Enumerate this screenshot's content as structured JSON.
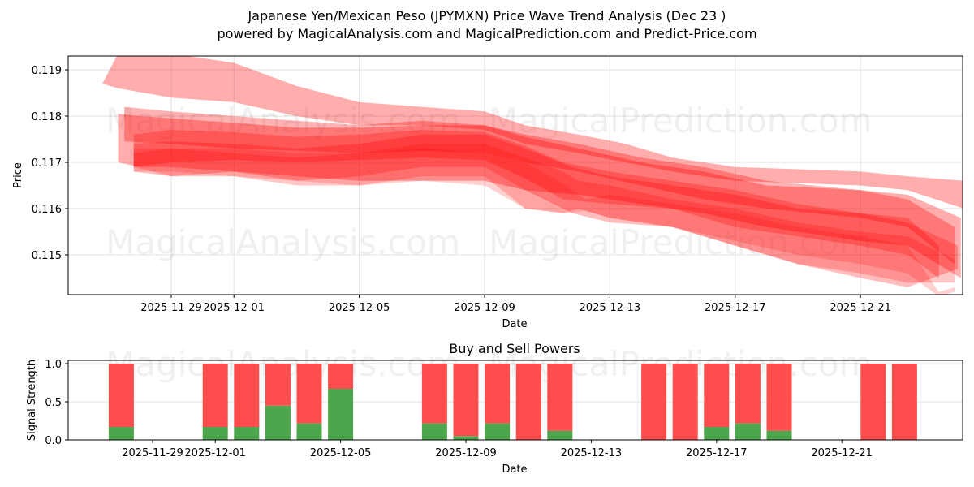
{
  "header": {
    "title_line1": "Japanese Yen/Mexican Peso (JPYMXN) Price Wave Trend Analysis (Dec 23 )",
    "title_line2": "powered by MagicalAnalysis.com and MagicalPrediction.com and Predict-Price.com"
  },
  "watermarks": [
    "MagicalAnalysis.com",
    "MagicalPrediction.com"
  ],
  "colors": {
    "band": "#ff0000",
    "sell": "#ff4c4c",
    "buy": "#4ca64c",
    "grid": "#e0e0e0",
    "axis": "#000000"
  },
  "chart_data": [
    {
      "type": "area",
      "title": "Japanese Yen/Mexican Peso (JPYMXN) Price Wave Trend Analysis (Dec 23 )",
      "xlabel": "Date",
      "ylabel": "Price",
      "ylim": [
        0.11415,
        0.1193
      ],
      "yticks": [
        0.115,
        0.116,
        0.117,
        0.118,
        0.119
      ],
      "ytick_labels": [
        "0.115",
        "0.116",
        "0.117",
        "0.118",
        "0.119"
      ],
      "xtick_labels": [
        "2025-11-29",
        "2025-12-01",
        "2025-12-05",
        "2025-12-09",
        "2025-12-13",
        "2025-12-17",
        "2025-12-21"
      ],
      "xtick_days": [
        2,
        4,
        8,
        12,
        16,
        20,
        24
      ],
      "x_range_days": [
        -0.7,
        27.9
      ],
      "grid": true,
      "x_days_legend": "day 0 = 2025-11-27",
      "bands": [
        {
          "opacity": 0.32,
          "x": [
            -0.2,
            0.3,
            2,
            4,
            6,
            8,
            10,
            12,
            13.3,
            15,
            16.5,
            18,
            20,
            24,
            25.5,
            27.3
          ],
          "upper": [
            0.1187,
            0.11935,
            0.11935,
            0.11915,
            0.11865,
            0.1183,
            0.1182,
            0.1181,
            0.1178,
            0.1176,
            0.1174,
            0.1171,
            0.1169,
            0.1168,
            0.1167,
            0.1166
          ],
          "lower": [
            0.1187,
            0.1186,
            0.1184,
            0.1183,
            0.118,
            0.1178,
            0.1178,
            0.1177,
            0.1174,
            0.1172,
            0.117,
            0.1168,
            0.1166,
            0.1165,
            0.1164,
            0.116
          ]
        },
        {
          "opacity": 0.32,
          "x": [
            0.3,
            1,
            2,
            4,
            6,
            8,
            10,
            12,
            13.3,
            15,
            17,
            19,
            21,
            24,
            25.5,
            27.2
          ],
          "upper": [
            0.11805,
            0.118,
            0.11795,
            0.11785,
            0.11775,
            0.11775,
            0.1178,
            0.1178,
            0.11755,
            0.1173,
            0.117,
            0.1168,
            0.1165,
            0.1164,
            0.1163,
            0.1158
          ],
          "lower": [
            0.117,
            0.1169,
            0.1169,
            0.1168,
            0.1167,
            0.1166,
            0.1166,
            0.1166,
            0.1164,
            0.1163,
            0.1161,
            0.1159,
            0.1156,
            0.1153,
            0.1152,
            0.1145
          ]
        },
        {
          "opacity": 0.3,
          "x": [
            0.5,
            2,
            4,
            6,
            8,
            10,
            12,
            13.3,
            15,
            17,
            19,
            21,
            24,
            25.5,
            27.0
          ],
          "upper": [
            0.1182,
            0.1181,
            0.118,
            0.1179,
            0.1178,
            0.1179,
            0.1178,
            0.1176,
            0.1174,
            0.1171,
            0.1169,
            0.1166,
            0.1164,
            0.1162,
            0.1156
          ],
          "lower": [
            0.11745,
            0.1174,
            0.1173,
            0.11725,
            0.1172,
            0.11725,
            0.1172,
            0.117,
            0.1168,
            0.1165,
            0.1162,
            0.116,
            0.1158,
            0.1156,
            0.1148
          ]
        },
        {
          "opacity": 0.28,
          "x": [
            0.8,
            2,
            4,
            6,
            8,
            10,
            12,
            13.3,
            14.5,
            16,
            18,
            20,
            22,
            24,
            25.5,
            26.5
          ],
          "upper": [
            0.1176,
            0.1177,
            0.11765,
            0.11755,
            0.1176,
            0.1177,
            0.11765,
            0.11735,
            0.117,
            0.1168,
            0.1166,
            0.1164,
            0.1161,
            0.1159,
            0.1158,
            0.1152
          ],
          "lower": [
            0.1169,
            0.117,
            0.11705,
            0.117,
            0.11705,
            0.1171,
            0.11705,
            0.11665,
            0.1162,
            0.1161,
            0.116,
            0.1156,
            0.1154,
            0.1152,
            0.115,
            0.1145
          ]
        },
        {
          "opacity": 0.26,
          "x": [
            0.8,
            2,
            4,
            6,
            8,
            10,
            12,
            13.3,
            14.8,
            16,
            18,
            20,
            22,
            24,
            25.5,
            27.1
          ],
          "upper": [
            0.1174,
            0.11745,
            0.1174,
            0.1173,
            0.1174,
            0.1176,
            0.1176,
            0.1173,
            0.1169,
            0.1167,
            0.1165,
            0.1163,
            0.116,
            0.1159,
            0.1157,
            0.1152
          ],
          "lower": [
            0.1168,
            0.1167,
            0.1168,
            0.1166,
            0.1167,
            0.1169,
            0.1169,
            0.1164,
            0.1159,
            0.1157,
            0.1156,
            0.1152,
            0.1148,
            0.1145,
            0.1143,
            0.1147
          ]
        },
        {
          "opacity": 0.22,
          "x": [
            0.8,
            2,
            4,
            6,
            8,
            10,
            12,
            13.3,
            14.5,
            15,
            16,
            18,
            20,
            22,
            24,
            25.5,
            27.0
          ],
          "upper": [
            0.1172,
            0.1173,
            0.1172,
            0.1171,
            0.1172,
            0.1174,
            0.1174,
            0.1171,
            0.1168,
            0.1166,
            0.1165,
            0.1162,
            0.116,
            0.1157,
            0.1155,
            0.1154,
            0.1149
          ],
          "lower": [
            0.1169,
            0.1167,
            0.1167,
            0.1165,
            0.1165,
            0.1167,
            0.1167,
            0.116,
            0.1159,
            0.116,
            0.1158,
            0.1156,
            0.1152,
            0.1148,
            0.1146,
            0.1144,
            0.1144
          ]
        },
        {
          "opacity": 0.18,
          "x": [
            0.8,
            2,
            4,
            6,
            8,
            10,
            12,
            13.3,
            14.6,
            15.2,
            16,
            18,
            20,
            22,
            24,
            25.5,
            26.5,
            27.0
          ],
          "upper": [
            0.1173,
            0.1173,
            0.1173,
            0.1172,
            0.1172,
            0.1173,
            0.1172,
            0.117,
            0.1165,
            0.1162,
            0.1163,
            0.1161,
            0.1159,
            0.1156,
            0.1154,
            0.1152,
            0.1142,
            0.1143
          ],
          "lower": [
            0.1168,
            0.1168,
            0.1167,
            0.1166,
            0.1165,
            0.1166,
            0.1165,
            0.116,
            0.1159,
            0.11595,
            0.1158,
            0.1156,
            0.1153,
            0.115,
            0.1148,
            0.1146,
            0.1141,
            0.1142
          ]
        }
      ]
    },
    {
      "type": "bar",
      "title": "Buy and Sell Powers",
      "xlabel": "Date",
      "ylabel": "Signal Strength",
      "ylim": [
        0.0,
        1.05
      ],
      "yticks": [
        0.0,
        0.5,
        1.0
      ],
      "ytick_labels": [
        "0.0",
        "0.5",
        "1.0"
      ],
      "xtick_labels": [
        "2025-11-29",
        "2025-12-01",
        "2025-12-05",
        "2025-12-09",
        "2025-12-13",
        "2025-12-17",
        "2025-12-21"
      ],
      "xtick_days": [
        2,
        4,
        8,
        12,
        16,
        20,
        24
      ],
      "grid": true,
      "categories": [
        "2025-11-28",
        "2025-12-01",
        "2025-12-02",
        "2025-12-03",
        "2025-12-04",
        "2025-12-05",
        "2025-12-08",
        "2025-12-09",
        "2025-12-10",
        "2025-12-11",
        "2025-12-12",
        "2025-12-15",
        "2025-12-16",
        "2025-12-17",
        "2025-12-18",
        "2025-12-19",
        "2025-12-22",
        "2025-12-23"
      ],
      "day_index": [
        1,
        4,
        5,
        6,
        7,
        8,
        11,
        12,
        13,
        14,
        15,
        18,
        19,
        20,
        21,
        22,
        25,
        26
      ],
      "series": [
        {
          "name": "Buy",
          "color": "#4ca64c",
          "values": [
            0.17,
            0.17,
            0.17,
            0.45,
            0.22,
            0.67,
            0.22,
            0.05,
            0.22,
            0.0,
            0.12,
            0.0,
            0.0,
            0.17,
            0.22,
            0.12,
            0.0,
            0.0
          ]
        },
        {
          "name": "Sell",
          "color": "#ff4c4c",
          "values": [
            0.83,
            0.83,
            0.83,
            0.55,
            0.78,
            0.33,
            0.78,
            0.95,
            0.78,
            1.0,
            0.88,
            1.0,
            1.0,
            0.83,
            0.78,
            0.88,
            1.0,
            1.0
          ]
        }
      ]
    }
  ]
}
